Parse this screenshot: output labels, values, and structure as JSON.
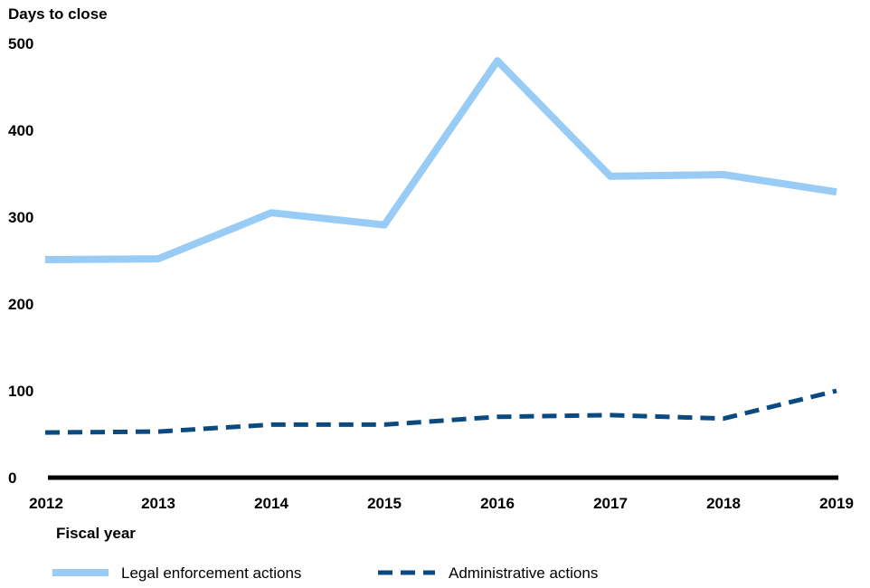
{
  "chart_data": {
    "type": "line",
    "ylabel": "Days to close",
    "xlabel": "Fiscal year",
    "x": [
      "2012",
      "2013",
      "2014",
      "2015",
      "2016",
      "2017",
      "2018",
      "2019"
    ],
    "ylim": [
      0,
      500
    ],
    "yticks": [
      "0",
      "100",
      "200",
      "300",
      "400",
      "500"
    ],
    "grid": false,
    "legend_position": "bottom",
    "series": [
      {
        "name": "Legal enforcement actions",
        "values": [
          251,
          252,
          305,
          291,
          480,
          347,
          349,
          329
        ],
        "color": "#99ccf5",
        "style": "solid"
      },
      {
        "name": "Administrative actions",
        "values": [
          52,
          53,
          61,
          61,
          70,
          72,
          68,
          100
        ],
        "color": "#0b4a80",
        "style": "dashed"
      }
    ]
  }
}
